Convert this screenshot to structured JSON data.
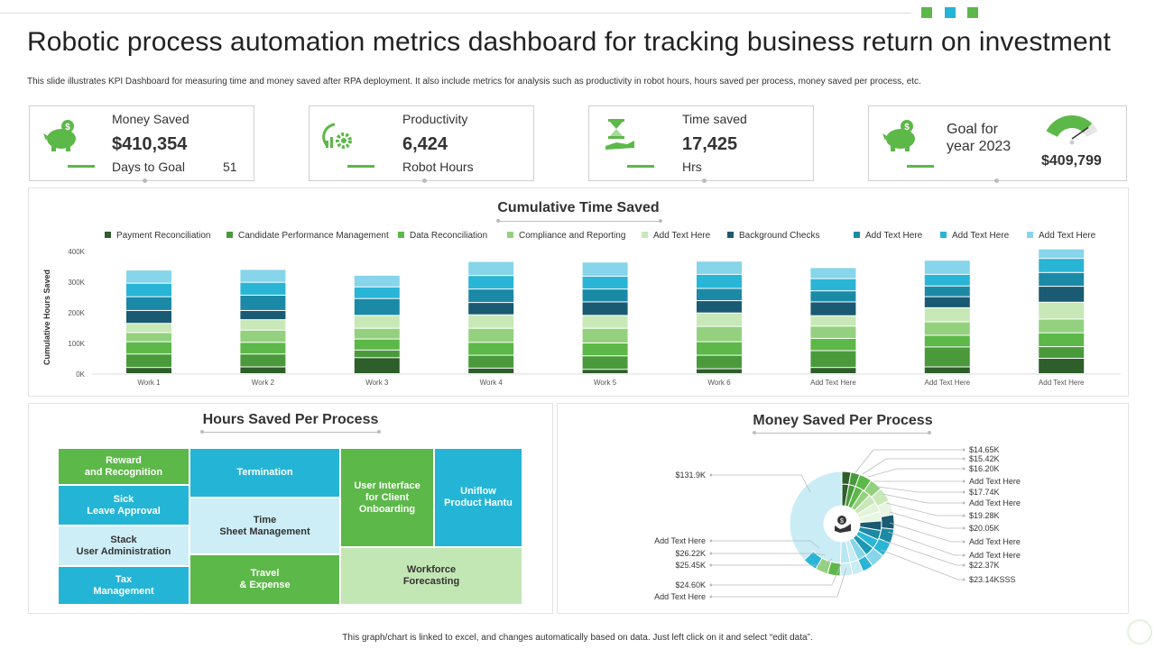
{
  "title": "Robotic process automation metrics dashboard for tracking business return on investment",
  "subtitle": "This slide illustrates KPI  Dashboard for measuring time and money saved after RPA deployment.  It also include metrics for analysis such as productivity in robot hours, hours saved per process, money saved per process, etc.",
  "kpis": {
    "money": {
      "label": "Money Saved",
      "value": "$410,354",
      "sub_label": "Days to Goal",
      "sub_value": "51"
    },
    "productivity": {
      "label": "Productivity",
      "value": "6,424",
      "sub_label": "Robot Hours"
    },
    "time": {
      "label": "Time saved",
      "value": "17,425",
      "sub_label": "Hrs"
    },
    "goal": {
      "label": "Goal for\nyear 2023",
      "value": "$409,799",
      "gauge_fraction": 0.85
    }
  },
  "colors": {
    "accent": "#5cb848",
    "dark_green": "#2e5e2a",
    "teal": "#1b98b5",
    "light_blue": "#c9ecf5"
  },
  "icons": [
    "piggy-bank-icon",
    "gear-chart-icon",
    "hourglass-hand-icon",
    "piggy-bank-icon",
    "hand-money-icon"
  ],
  "chart_data": [
    {
      "type": "bar",
      "stacked": true,
      "title": "Cumulative Time Saved",
      "xlabel": "",
      "ylabel": "Cumulative Hours Saved",
      "ylim": [
        0,
        400000
      ],
      "yticks": [
        "0K",
        "100K",
        "200K",
        "300K",
        "400K"
      ],
      "legend_position": "top",
      "categories": [
        "Work 1",
        "Work 2",
        "Work 3",
        "Work 4",
        "Work 5",
        "Work 6",
        "Add Text Here",
        "Add Text Here",
        "Add Text Here"
      ],
      "series": [
        {
          "name": "Payment Reconciliation",
          "color": "#2e5e2a",
          "values": [
            20000,
            22000,
            52000,
            18000,
            14000,
            16000,
            20000,
            22000,
            50000
          ]
        },
        {
          "name": "Candidate Performance Management",
          "color": "#4a9a3c",
          "values": [
            44000,
            42000,
            25000,
            42000,
            44000,
            44000,
            55000,
            65000,
            38000
          ]
        },
        {
          "name": "Data Reconciliation",
          "color": "#5cb848",
          "values": [
            40000,
            38000,
            36000,
            42000,
            42000,
            44000,
            40000,
            38000,
            45000
          ]
        },
        {
          "name": "Compliance and Reporting",
          "color": "#94d17f",
          "values": [
            30000,
            40000,
            35000,
            46000,
            48000,
            50000,
            40000,
            44000,
            45000
          ]
        },
        {
          "name": "Add Text Here",
          "color": "#c8e8b8",
          "values": [
            30000,
            34000,
            42000,
            44000,
            42000,
            44000,
            34000,
            46000,
            55000
          ]
        },
        {
          "name": "Background Checks",
          "color": "#1a5a72",
          "values": [
            42000,
            30000,
            0,
            40000,
            44000,
            40000,
            45000,
            36000,
            52000
          ]
        },
        {
          "name": "Add Text Here",
          "color": "#1b8aa6",
          "values": [
            45000,
            50000,
            55000,
            44000,
            42000,
            40000,
            36000,
            35000,
            45000
          ]
        },
        {
          "name": "Add Text Here",
          "color": "#29b5d6",
          "values": [
            44000,
            42000,
            38000,
            44000,
            42000,
            46000,
            40000,
            38000,
            46000
          ]
        },
        {
          "name": "Add Text Here",
          "color": "#86d5ea",
          "values": [
            43000,
            42000,
            38000,
            46000,
            46000,
            43000,
            36000,
            46000,
            31000
          ]
        }
      ]
    },
    {
      "type": "treemap",
      "title": "Hours Saved Per Process",
      "items": [
        {
          "label": "Reward\nand Recognition",
          "color": "#5cb848",
          "text": "#ffffff"
        },
        {
          "label": "Sick\nLeave Approval",
          "color": "#24b5d6",
          "text": "#ffffff"
        },
        {
          "label": "Stack\nUser Administration",
          "color": "#cdeef6",
          "text": "#333333"
        },
        {
          "label": "Tax\nManagement",
          "color": "#24b5d6",
          "text": "#ffffff"
        },
        {
          "label": "Termination",
          "color": "#24b5d6",
          "text": "#ffffff"
        },
        {
          "label": "Time\nSheet Management",
          "color": "#cdeef6",
          "text": "#333333"
        },
        {
          "label": "Travel\n& Expense",
          "color": "#5cb848",
          "text": "#ffffff"
        },
        {
          "label": "User Interface\nfor Client\nOnboarding",
          "color": "#5cb848",
          "text": "#ffffff"
        },
        {
          "label": "Uniflow\nProduct Hantu",
          "color": "#24b5d6",
          "text": "#ffffff"
        },
        {
          "label": "Workforce\nForecasting",
          "color": "#c3e6b5",
          "text": "#333333"
        }
      ]
    },
    {
      "type": "pie",
      "subtype": "sunburst",
      "title": "Money Saved Per Process",
      "labels_left": [
        "$131.9K",
        "Add Text Here",
        "$26.22K",
        "$25.45K",
        "$24.60K",
        "Add Text Here"
      ],
      "labels_right": [
        "$14.65K",
        "$15.42K",
        "$16.20K",
        "Add Text Here",
        "$17.74K",
        "Add Text Here",
        "$19.28K",
        "$20.05K",
        "Add Text Here",
        "Add Text Here",
        "$22.37K",
        "$23.14KSSS"
      ]
    }
  ],
  "footer": "This graph/chart is linked to excel, and changes automatically based on data. Just left click on it and select “edit data”."
}
